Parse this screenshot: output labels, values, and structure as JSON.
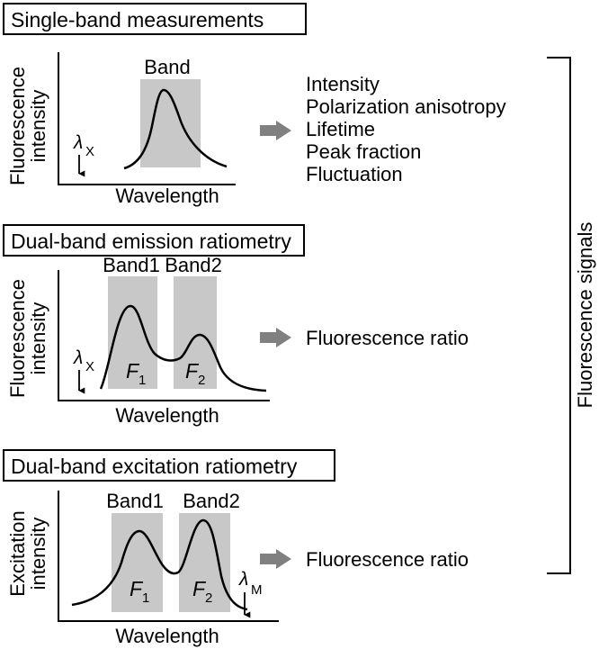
{
  "panels": [
    {
      "title": "Single-band measurements",
      "y_label_line1": "Fluorescence",
      "y_label_line2": "intensity",
      "x_label": "Wavelength",
      "bands": [
        {
          "label": "Band",
          "symbol": "",
          "subscript": ""
        }
      ],
      "lambda_symbol": "λ",
      "lambda_subscript": "X",
      "outputs": [
        "Intensity",
        "Polarization anisotropy",
        "Lifetime",
        "Peak fraction",
        "Fluctuation"
      ]
    },
    {
      "title": "Dual-band emission ratiometry",
      "y_label_line1": "Fluorescence",
      "y_label_line2": "intensity",
      "x_label": "Wavelength",
      "bands": [
        {
          "label": "Band1",
          "symbol": "F",
          "subscript": "1"
        },
        {
          "label": "Band2",
          "symbol": "F",
          "subscript": "2"
        }
      ],
      "lambda_symbol": "λ",
      "lambda_subscript": "X",
      "outputs": [
        "Fluorescence ratio"
      ]
    },
    {
      "title": "Dual-band excitation ratiometry",
      "y_label_line1": "Excitation",
      "y_label_line2": "intensity",
      "x_label": "Wavelength",
      "bands": [
        {
          "label": "Band1",
          "symbol": "F",
          "subscript": "1"
        },
        {
          "label": "Band2",
          "symbol": "F",
          "subscript": "2"
        }
      ],
      "lambda_symbol": "λ",
      "lambda_subscript": "M",
      "outputs": [
        "Fluorescence ratio"
      ]
    }
  ],
  "bracket_label": "Fluorescence signals",
  "colors": {
    "band_fill": "#c8c8c8",
    "arrow": "#808080",
    "line": "#000000"
  }
}
